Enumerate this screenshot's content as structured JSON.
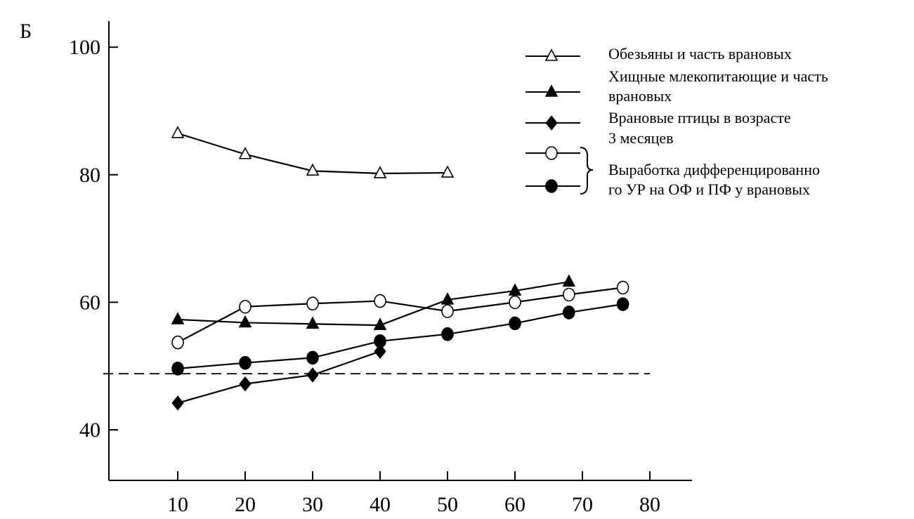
{
  "panel_label": "Б",
  "chart_data": {
    "type": "line",
    "title": "",
    "xlabel": "",
    "ylabel": "",
    "xlim": [
      0,
      80
    ],
    "ylim": [
      33,
      100
    ],
    "x_ticks": [
      10,
      20,
      30,
      40,
      50,
      60,
      70,
      80
    ],
    "y_ticks": [
      40,
      60,
      80,
      100
    ],
    "grid": false,
    "legend_position": "top-right",
    "reference_line": {
      "y": 48.8,
      "style": "dashed"
    },
    "series": [
      {
        "name": "Обезьяны и часть врановых",
        "marker": "open-triangle",
        "x": [
          10,
          20,
          30,
          40,
          50
        ],
        "y": [
          86.5,
          83.2,
          80.6,
          80.2,
          80.3
        ]
      },
      {
        "name": "Хищные млекопитающие и часть врановых",
        "marker": "filled-triangle",
        "x": [
          10,
          20,
          30,
          40,
          50,
          60,
          68
        ],
        "y": [
          57.3,
          56.8,
          56.6,
          56.4,
          60.4,
          61.8,
          63.2
        ]
      },
      {
        "name": "Врановые птицы в возрасте 3 месяцев",
        "marker": "filled-diamond",
        "x": [
          10,
          20,
          30,
          40
        ],
        "y": [
          44.2,
          47.2,
          48.6,
          52.3
        ]
      },
      {
        "name": "Выработка дифференцированного УР на ОФ и ПФ у врановых (1)",
        "marker": "open-circle",
        "x": [
          10,
          20,
          30,
          40,
          50,
          60,
          68,
          76
        ],
        "y": [
          53.7,
          59.3,
          59.8,
          60.2,
          58.6,
          60.0,
          61.2,
          62.3
        ]
      },
      {
        "name": "Выработка дифференцированного УР на ОФ и ПФ у врановых (2)",
        "marker": "filled-circle",
        "x": [
          10,
          20,
          30,
          40,
          50,
          60,
          68,
          76
        ],
        "y": [
          49.6,
          50.5,
          51.3,
          53.9,
          55.0,
          56.7,
          58.4,
          59.7
        ]
      }
    ]
  },
  "legend": {
    "line1": "Обезьяны и часть врановых",
    "line2a": "Хищные млекопитающие и часть",
    "line2b": "врановых",
    "line3a": "Врановые птицы в возрасте",
    "line3b": "3 месяцев",
    "line4a": "Выработка дифференцированно",
    "line4b": "го УР на ОФ и ПФ у врановых"
  }
}
